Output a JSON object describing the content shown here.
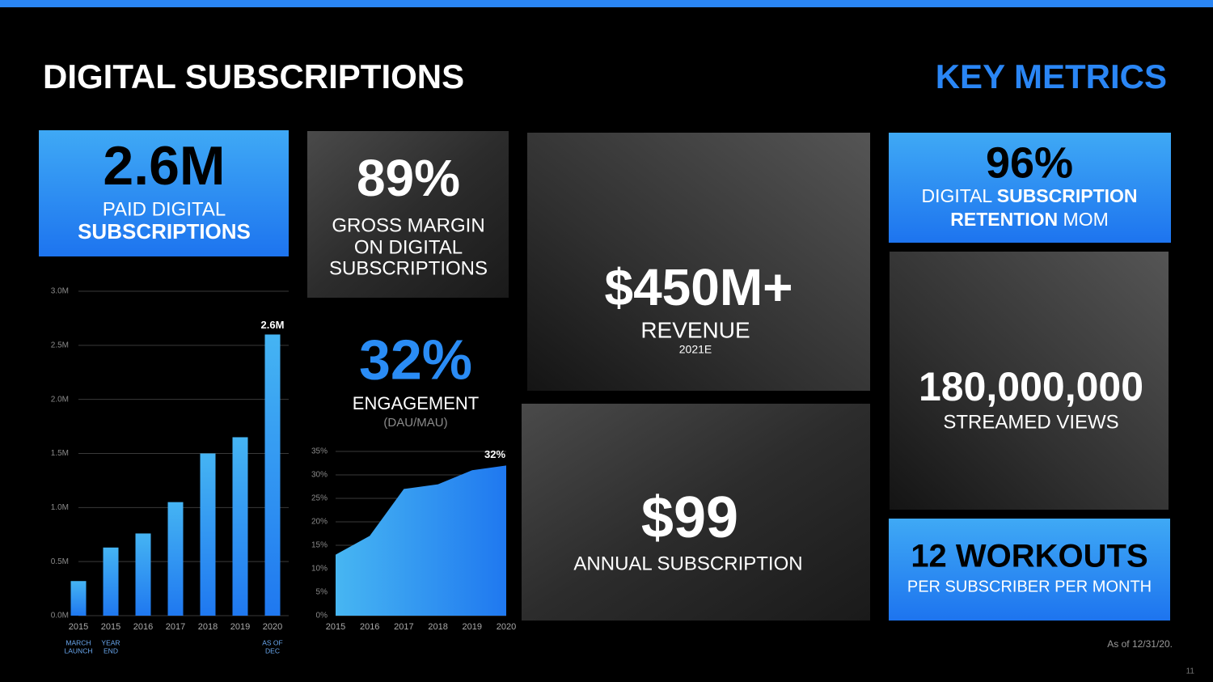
{
  "header": {
    "title": "DIGITAL SUBSCRIPTIONS",
    "subtitle": "KEY METRICS"
  },
  "metrics": {
    "paid": {
      "value": "2.6M",
      "lines": [
        "PAID DIGITAL",
        "SUBSCRIPTIONS"
      ]
    },
    "margin": {
      "value": "89%",
      "lines": [
        "GROSS MARGIN",
        "ON DIGITAL",
        "SUBSCRIPTIONS"
      ]
    },
    "engagement": {
      "value": "32%",
      "label": "ENGAGEMENT",
      "note": "(DAU/MAU)"
    },
    "revenue": {
      "value": "$450M+",
      "label": "REVENUE",
      "note": "2021E"
    },
    "price": {
      "value": "$99",
      "label": "ANNUAL SUBSCRIPTION"
    },
    "retention": {
      "value": "96%",
      "parts": [
        "DIGITAL",
        "SUBSCRIPTION",
        "RETENTION",
        "MOM"
      ]
    },
    "views": {
      "value": "180,000,000",
      "label": "STREAMED VIEWS"
    },
    "workouts": {
      "value": "12 WORKOUTS",
      "label": "PER SUBSCRIBER PER MONTH"
    }
  },
  "chart_data": [
    {
      "type": "bar",
      "categories": [
        "2015",
        "2015",
        "2016",
        "2017",
        "2018",
        "2019",
        "2020"
      ],
      "category_notes": [
        [
          "MARCH",
          "LAUNCH"
        ],
        [
          "YEAR",
          "END"
        ],
        null,
        null,
        null,
        null,
        [
          "AS OF",
          "DEC"
        ]
      ],
      "values": [
        0.32,
        0.63,
        0.76,
        1.05,
        1.5,
        1.65,
        2.6
      ],
      "value_labels": [
        null,
        null,
        null,
        null,
        null,
        null,
        "2.6M"
      ],
      "color": "#1f78f0",
      "ylim": [
        0,
        3
      ],
      "yticks": [
        {
          "value": 0,
          "label": "0.0M"
        },
        {
          "value": 0.5,
          "label": "0.5M"
        },
        {
          "value": 1,
          "label": "1.0M"
        },
        {
          "value": 1.5,
          "label": "1.5M"
        },
        {
          "value": 2,
          "label": "2.0M"
        },
        {
          "value": 2.5,
          "label": "2.5M"
        },
        {
          "value": 3,
          "label": "3.0M"
        }
      ],
      "grid": true
    },
    {
      "type": "area",
      "categories": [
        "2015",
        "2016",
        "2017",
        "2018",
        "2019",
        "2020"
      ],
      "values": [
        13,
        17,
        27,
        28,
        31,
        32
      ],
      "value_labels": [
        null,
        null,
        null,
        null,
        null,
        "32%"
      ],
      "color": "#1f78f0",
      "ylim": [
        0,
        35
      ],
      "yticks": [
        {
          "value": 0,
          "label": "0%"
        },
        {
          "value": 5,
          "label": "5%"
        },
        {
          "value": 10,
          "label": "10%"
        },
        {
          "value": 15,
          "label": "15%"
        },
        {
          "value": 20,
          "label": "20%"
        },
        {
          "value": 25,
          "label": "25%"
        },
        {
          "value": 30,
          "label": "30%"
        },
        {
          "value": 35,
          "label": "35%"
        }
      ],
      "grid": true
    }
  ],
  "footnote": "As of 12/31/20.",
  "page_number": "11"
}
